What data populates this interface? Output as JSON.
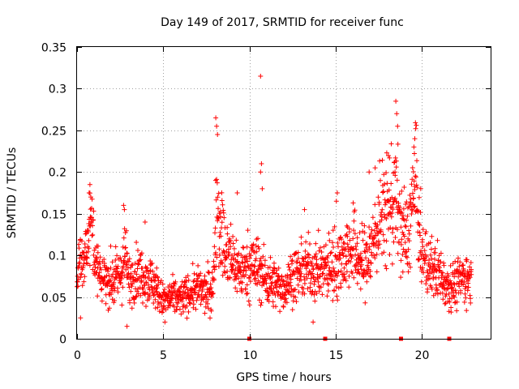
{
  "chart_data": {
    "type": "scatter",
    "title": "Day 149 of 2017, SRMTID for receiver func",
    "xlabel": "GPS time / hours",
    "ylabel": "SRMTID / TECUs",
    "xlim": [
      0,
      24
    ],
    "ylim": [
      0,
      0.35
    ],
    "xticks": [
      0,
      5,
      10,
      15,
      20
    ],
    "xtick_labels": [
      "0",
      "5",
      "10",
      "15",
      "20"
    ],
    "yticks": [
      0,
      0.05,
      0.1,
      0.15,
      0.2,
      0.25,
      0.3,
      0.35
    ],
    "ytick_labels": [
      "0",
      "0.05",
      "0.1",
      "0.15",
      "0.2",
      "0.25",
      "0.3",
      "0.35"
    ],
    "grid": true,
    "marker": "+",
    "color": "#ff0000",
    "baseline_markers_x": [
      10.0,
      14.4,
      18.8,
      21.6
    ],
    "envelope": [
      [
        0.0,
        0.085,
        0.022
      ],
      [
        0.3,
        0.09,
        0.025
      ],
      [
        0.6,
        0.11,
        0.03
      ],
      [
        0.8,
        0.15,
        0.04
      ],
      [
        1.0,
        0.09,
        0.025
      ],
      [
        1.5,
        0.075,
        0.022
      ],
      [
        2.0,
        0.068,
        0.022
      ],
      [
        2.5,
        0.075,
        0.022
      ],
      [
        2.8,
        0.1,
        0.03
      ],
      [
        3.0,
        0.07,
        0.022
      ],
      [
        3.5,
        0.08,
        0.022
      ],
      [
        4.0,
        0.075,
        0.022
      ],
      [
        4.5,
        0.065,
        0.02
      ],
      [
        5.0,
        0.045,
        0.014
      ],
      [
        5.5,
        0.05,
        0.016
      ],
      [
        6.0,
        0.048,
        0.015
      ],
      [
        6.5,
        0.055,
        0.016
      ],
      [
        7.0,
        0.06,
        0.018
      ],
      [
        7.5,
        0.055,
        0.018
      ],
      [
        7.9,
        0.06,
        0.02
      ],
      [
        8.1,
        0.17,
        0.045
      ],
      [
        8.3,
        0.14,
        0.045
      ],
      [
        8.6,
        0.1,
        0.03
      ],
      [
        9.0,
        0.095,
        0.03
      ],
      [
        9.5,
        0.08,
        0.022
      ],
      [
        10.0,
        0.09,
        0.028
      ],
      [
        10.5,
        0.085,
        0.028
      ],
      [
        11.0,
        0.07,
        0.022
      ],
      [
        11.5,
        0.065,
        0.02
      ],
      [
        12.0,
        0.06,
        0.018
      ],
      [
        12.5,
        0.075,
        0.022
      ],
      [
        13.0,
        0.08,
        0.022
      ],
      [
        13.5,
        0.085,
        0.025
      ],
      [
        14.0,
        0.08,
        0.025
      ],
      [
        14.5,
        0.085,
        0.028
      ],
      [
        15.0,
        0.09,
        0.03
      ],
      [
        15.5,
        0.1,
        0.03
      ],
      [
        16.0,
        0.11,
        0.035
      ],
      [
        16.5,
        0.09,
        0.03
      ],
      [
        17.0,
        0.1,
        0.035
      ],
      [
        17.5,
        0.14,
        0.04
      ],
      [
        18.0,
        0.16,
        0.05
      ],
      [
        18.5,
        0.17,
        0.05
      ],
      [
        18.8,
        0.13,
        0.04
      ],
      [
        19.2,
        0.12,
        0.035
      ],
      [
        19.6,
        0.19,
        0.05
      ],
      [
        20.0,
        0.1,
        0.03
      ],
      [
        20.5,
        0.085,
        0.025
      ],
      [
        21.0,
        0.08,
        0.025
      ],
      [
        21.5,
        0.065,
        0.02
      ],
      [
        22.0,
        0.065,
        0.02
      ],
      [
        22.5,
        0.075,
        0.022
      ],
      [
        22.9,
        0.07,
        0.02
      ]
    ],
    "notable_points": [
      [
        10.65,
        0.315
      ],
      [
        8.05,
        0.265
      ],
      [
        8.1,
        0.255
      ],
      [
        8.15,
        0.245
      ],
      [
        18.5,
        0.285
      ],
      [
        18.55,
        0.27
      ],
      [
        18.6,
        0.255
      ],
      [
        19.65,
        0.252
      ],
      [
        19.6,
        0.24
      ],
      [
        19.55,
        0.23
      ],
      [
        10.7,
        0.21
      ],
      [
        10.65,
        0.2
      ],
      [
        10.75,
        0.18
      ],
      [
        9.3,
        0.175
      ],
      [
        17.3,
        0.205
      ],
      [
        16.95,
        0.2
      ],
      [
        18.45,
        0.2
      ],
      [
        0.75,
        0.185
      ],
      [
        0.7,
        0.175
      ],
      [
        0.8,
        0.17
      ],
      [
        2.7,
        0.16
      ],
      [
        2.75,
        0.155
      ],
      [
        3.95,
        0.14
      ],
      [
        15.1,
        0.175
      ],
      [
        15.05,
        0.165
      ],
      [
        13.2,
        0.155
      ],
      [
        0.2,
        0.025
      ],
      [
        2.9,
        0.015
      ],
      [
        13.7,
        0.02
      ],
      [
        5.1,
        0.02
      ]
    ]
  }
}
